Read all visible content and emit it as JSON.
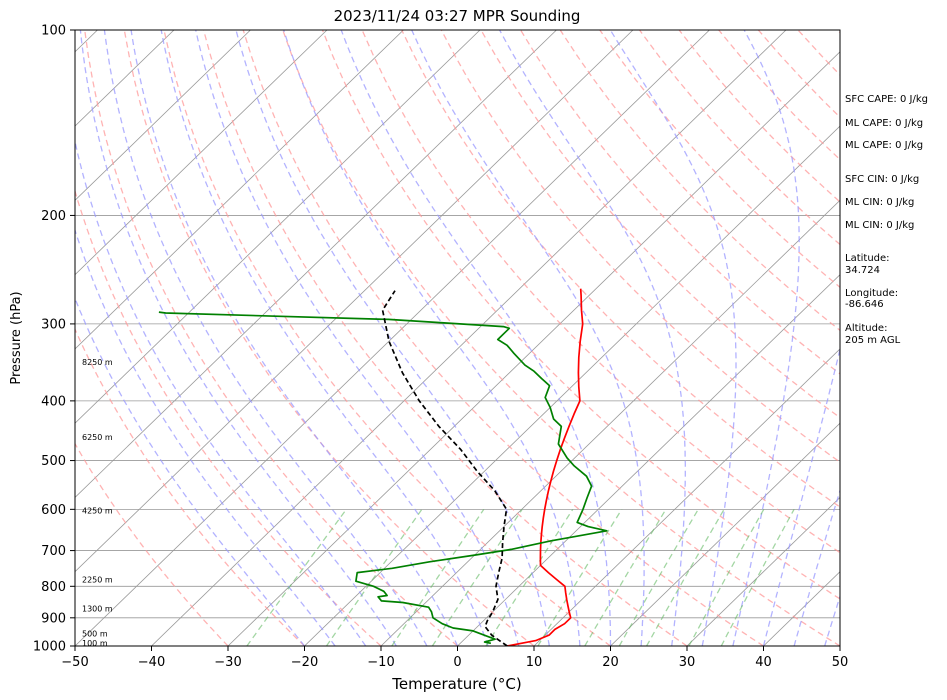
{
  "chart_data": {
    "type": "skew-t",
    "title": "2023/11/24 03:27 MPR Sounding",
    "xlabel": "Temperature (°C)",
    "ylabel": "Pressure (hPa)",
    "xlim": [
      -50,
      50
    ],
    "ylim": [
      1000,
      100
    ],
    "y_scale": "log",
    "x_ticks": [
      "−50",
      "−40",
      "−30",
      "−20",
      "−10",
      "0",
      "10",
      "20",
      "30",
      "40",
      "50"
    ],
    "y_ticks": [
      "100",
      "200",
      "300",
      "400",
      "500",
      "600",
      "700",
      "800",
      "900",
      "1000"
    ],
    "grid": true,
    "series": [
      {
        "key": "temperature",
        "color": "#ff0000",
        "style": "solid",
        "points": [
          [
            6.5,
            1000
          ],
          [
            9.5,
            980
          ],
          [
            10.5,
            960
          ],
          [
            10.5,
            940
          ],
          [
            11,
            920
          ],
          [
            11,
            900
          ],
          [
            10,
            880
          ],
          [
            9,
            860
          ],
          [
            8,
            840
          ],
          [
            7,
            820
          ],
          [
            6,
            800
          ],
          [
            4,
            780
          ],
          [
            2,
            760
          ],
          [
            0,
            740
          ],
          [
            -1,
            720
          ],
          [
            -2,
            700
          ],
          [
            -3,
            680
          ],
          [
            -4,
            660
          ],
          [
            -5,
            640
          ],
          [
            -6,
            620
          ],
          [
            -7,
            600
          ],
          [
            -8,
            580
          ],
          [
            -9,
            560
          ],
          [
            -10,
            540
          ],
          [
            -11,
            520
          ],
          [
            -12,
            500
          ],
          [
            -13,
            480
          ],
          [
            -14,
            460
          ],
          [
            -15,
            440
          ],
          [
            -16,
            420
          ],
          [
            -17,
            400
          ],
          [
            -19,
            380
          ],
          [
            -21,
            360
          ],
          [
            -23,
            340
          ],
          [
            -25,
            320
          ],
          [
            -27,
            300
          ],
          [
            -29,
            285
          ],
          [
            -31,
            270
          ],
          [
            -32,
            263
          ]
        ]
      },
      {
        "key": "dewpoint",
        "color": "#008000",
        "style": "solid",
        "points": [
          [
            4,
            990
          ],
          [
            3,
            985
          ],
          [
            4,
            975
          ],
          [
            2,
            960
          ],
          [
            0,
            945
          ],
          [
            -3,
            935
          ],
          [
            -5,
            920
          ],
          [
            -7,
            900
          ],
          [
            -8,
            880
          ],
          [
            -9,
            865
          ],
          [
            -13,
            850
          ],
          [
            -16,
            845
          ],
          [
            -17,
            832
          ],
          [
            -16,
            828
          ],
          [
            -17,
            815
          ],
          [
            -19,
            800
          ],
          [
            -22,
            785
          ],
          [
            -23,
            760
          ],
          [
            -19,
            748
          ],
          [
            -15,
            730
          ],
          [
            -10,
            712
          ],
          [
            -6,
            697
          ],
          [
            -2,
            675
          ],
          [
            4,
            650
          ],
          [
            1,
            640
          ],
          [
            -1,
            630
          ],
          [
            -2,
            600
          ],
          [
            -3,
            575
          ],
          [
            -4,
            550
          ],
          [
            -6,
            530
          ],
          [
            -9,
            510
          ],
          [
            -11,
            495
          ],
          [
            -14,
            470
          ],
          [
            -16,
            440
          ],
          [
            -18,
            428
          ],
          [
            -20,
            410
          ],
          [
            -22,
            395
          ],
          [
            -23,
            378
          ],
          [
            -25,
            368
          ],
          [
            -27,
            358
          ],
          [
            -29,
            350
          ],
          [
            -32,
            335
          ],
          [
            -34,
            325
          ],
          [
            -36,
            318
          ],
          [
            -36,
            310
          ],
          [
            -36,
            305
          ],
          [
            -37,
            303
          ],
          [
            -53,
            295
          ],
          [
            -83,
            288
          ],
          [
            -84,
            287
          ]
        ]
      },
      {
        "key": "parcel",
        "color": "#000000",
        "style": "dashed",
        "points": [
          [
            6.5,
            1000
          ],
          [
            3,
            960
          ],
          [
            1,
            930
          ],
          [
            0.5,
            910
          ],
          [
            0,
            880
          ],
          [
            -1,
            840
          ],
          [
            -3,
            800
          ],
          [
            -4.5,
            760
          ],
          [
            -6,
            720
          ],
          [
            -8,
            680
          ],
          [
            -10,
            640
          ],
          [
            -12,
            600
          ],
          [
            -16,
            560
          ],
          [
            -21,
            520
          ],
          [
            -26,
            480
          ],
          [
            -32,
            440
          ],
          [
            -38,
            400
          ],
          [
            -44,
            360
          ],
          [
            -50,
            320
          ],
          [
            -55,
            285
          ],
          [
            -56,
            265
          ]
        ]
      }
    ],
    "height_labels": [
      {
        "text": "100 m",
        "p": 988
      },
      {
        "text": "500 m",
        "p": 955
      },
      {
        "text": "1300 m",
        "p": 870
      },
      {
        "text": "2250 m",
        "p": 780
      },
      {
        "text": "4250 m",
        "p": 603
      },
      {
        "text": "6250 m",
        "p": 458
      },
      {
        "text": "8250 m",
        "p": 346
      }
    ]
  },
  "stats": [
    {
      "text": "SFC CAPE: 0 J/kg"
    },
    {
      "text": "ML CAPE: 0 J/kg"
    },
    {
      "text": "ML CAPE: 0 J/kg"
    },
    {
      "text": "SFC CIN: 0 J/kg"
    },
    {
      "text": "ML CIN: 0 J/kg"
    },
    {
      "text": "ML CIN: 0 J/kg"
    }
  ],
  "location": {
    "latitude_label": "Latitude:",
    "latitude_value": "34.724",
    "longitude_label": "Longitude:",
    "longitude_value": "-86.646",
    "altitude_label": "Altitude:",
    "altitude_value": "205 m AGL"
  },
  "colors": {
    "temperature": "#ff0000",
    "dewpoint": "#008000",
    "parcel": "#000000",
    "dry_adiabat": "#ff9999",
    "moist_adiabat": "#9999ff",
    "mixing_ratio": "#66bb66",
    "isotherm": "#999999"
  }
}
